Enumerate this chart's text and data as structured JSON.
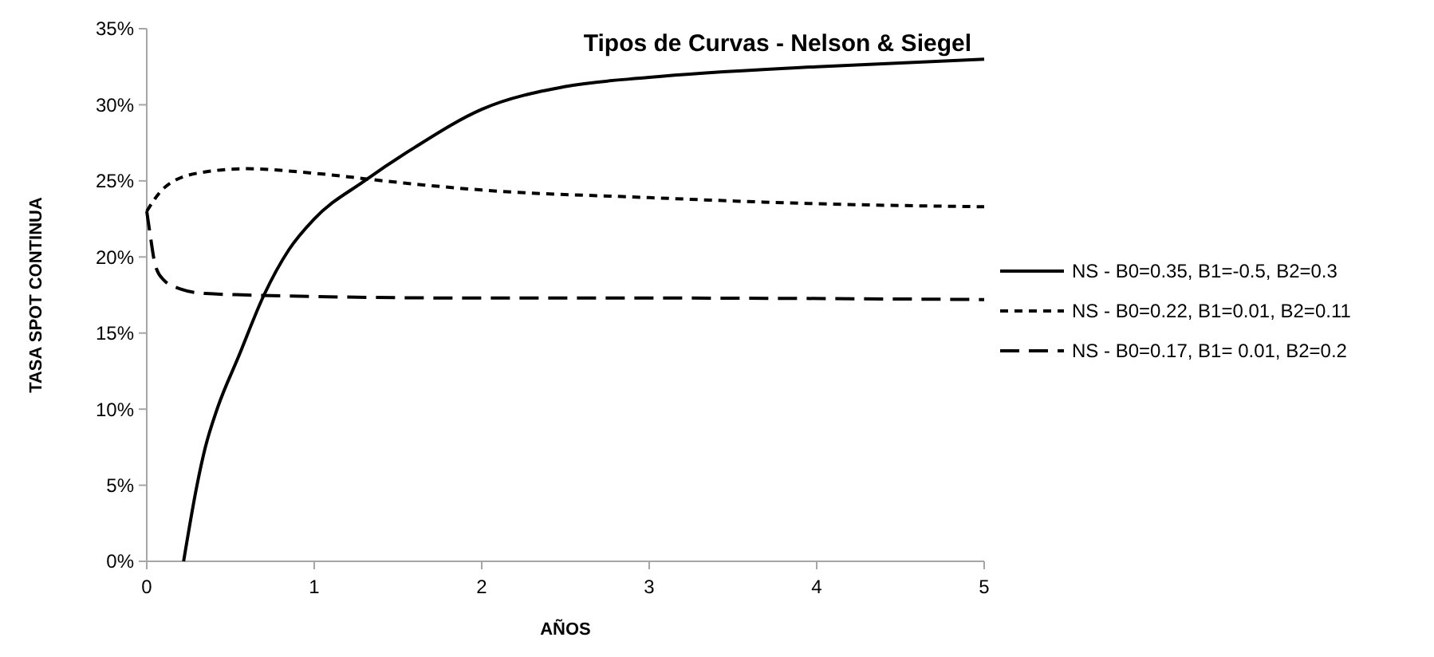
{
  "chart_data": {
    "type": "line",
    "title": "Tipos de Curvas - Nelson & Siegel",
    "xlabel": "AÑOS",
    "ylabel": "TASA SPOT CONTINUA",
    "xlim": [
      0,
      5
    ],
    "xticks": [
      0,
      1,
      2,
      3,
      4,
      5
    ],
    "ylim": [
      0,
      35
    ],
    "yticks": [
      {
        "value": 0,
        "label": "0%"
      },
      {
        "value": 5,
        "label": "5%"
      },
      {
        "value": 10,
        "label": "10%"
      },
      {
        "value": 15,
        "label": "15%"
      },
      {
        "value": 20,
        "label": "20%"
      },
      {
        "value": 25,
        "label": "25%"
      },
      {
        "value": 30,
        "label": "30%"
      },
      {
        "value": 35,
        "label": "35%"
      }
    ],
    "grid": false,
    "legend": "right",
    "series": [
      {
        "name": "NS - B0=0.35, B1=-0.5, B2=0.3",
        "color": "#000000",
        "line_style": "solid",
        "x": [
          0.22,
          0.3,
          0.35,
          0.42,
          0.55,
          0.7,
          0.85,
          1,
          1.3,
          1.6,
          2,
          2.5,
          3,
          4,
          5
        ],
        "values": [
          0,
          5,
          7.5,
          10,
          13.5,
          17.5,
          20.5,
          22.5,
          25,
          27.2,
          29.7,
          31.2,
          31.8,
          32.5,
          33
        ]
      },
      {
        "name": "NS - B0=0.22, B1=0.01, B2=0.11",
        "color": "#000000",
        "line_style": "dashed",
        "x": [
          0,
          0.1,
          0.3,
          0.6,
          1,
          1.5,
          2,
          3,
          4,
          5
        ],
        "values": [
          23,
          24.5,
          25.5,
          25.8,
          25.5,
          24.9,
          24.4,
          23.9,
          23.5,
          23.3
        ]
      },
      {
        "name": "NS - B0=0.17, B1= 0.01, B2=0.2",
        "color": "#000000",
        "line_style": "longdash",
        "x": [
          0,
          0.02,
          0.05,
          0.1,
          0.2,
          0.35,
          0.6,
          1,
          2,
          3,
          5
        ],
        "values": [
          23,
          21.5,
          19.5,
          18.5,
          17.9,
          17.6,
          17.5,
          17.4,
          17.3,
          17.3,
          17.2
        ]
      }
    ]
  }
}
